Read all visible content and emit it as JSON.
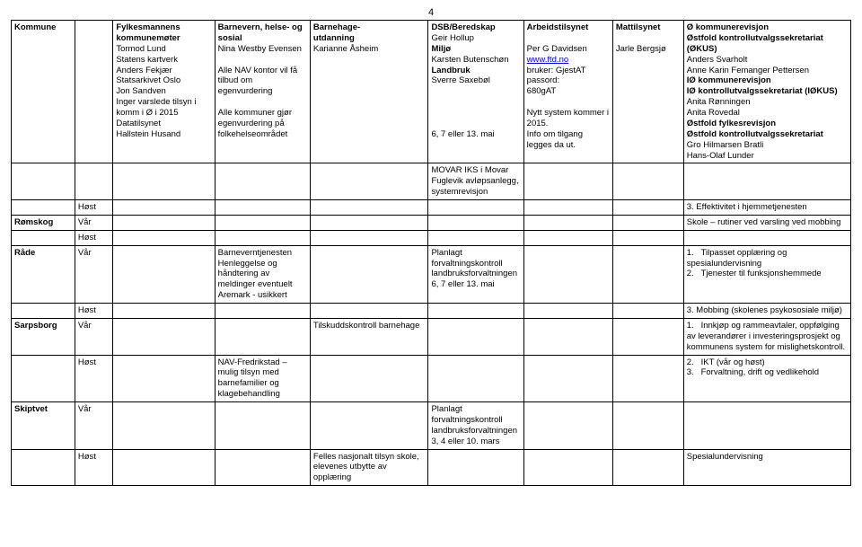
{
  "page_number": "4",
  "headers": {
    "c0": "Kommune",
    "c2_title": "Fylkesmannens kommunemøter",
    "c2_lines": "Tormod Lund\nStatens kartverk\nAnders Fekjær\nStatsarkivet Oslo\nJon Sandven\nInger varslede tilsyn i komm i Ø i 2015\nDatatilsynet\nHallstein Husand",
    "c3_title": "Barnevern, helse- og sosial",
    "c3_lines": "Nina Westby Evensen\n\nAlle NAV kontor vil få tilbud om egenvurdering\n\nAlle kommuner gjør egenvurdering på folkehelseområdet",
    "c4_title": "Barnehage-\nutdanning",
    "c4_lines": "Karianne Åsheim",
    "c5_title": "DSB/Beredskap",
    "c5_lines_html": "Geir Hollup<br><b>Miljø</b><br>Karsten Butenschøn<br><b>Landbruk</b><br>Sverre Saxebøl<br><br><br><br><br>6, 7 eller 13. mai",
    "c6_title": "Arbeidstilsynet",
    "c6_lines_html": "Per G Davidsen<br><a class=\"link\" href=\"#\">www.ftd.no</a><br>bruker: GjestAT<br>passord:<br>680gAT<br><br>Nytt system kommer i 2015.<br>Info om tilgang legges da ut.",
    "c7_title": "Mattilsynet",
    "c7_lines": "Jarle Bergsjø",
    "c8_title": "Ø kommunerevisjon",
    "c8_lines_html": "<b>Østfold kontrollutvalgssekretariat (ØKUS)</b><br>Anders Svarholt<br>Anne Karin Femanger Pettersen<br><b>IØ kommunerevisjon</b><br><b>IØ kontrollutvalgssekretariat (IØKUS)</b><br>Anita Rønningen<br>Anita Rovedal<br><b>Østfold fylkesrevisjon</b><br><b>Østfold kontrollutvalgssekretariat</b><br>Gro Hilmarsen Bratli<br>Hans-Olaf Lunder"
  },
  "rows": {
    "movar": "MOVAR IKS i Movar Fuglevik avløpsanlegg, systemrevisjon",
    "host_eff": "3.   Effektivitet i hjemmetjenesten",
    "romskog": "Rømskog",
    "romskog_var": "Skole – rutiner ved varsling ved mobbing",
    "rade": "Råde",
    "rade_c3": "Barneverntjenesten Henleggelse og håndtering av meldinger eventuelt Aremark - usikkert",
    "rade_c5": "Planlagt forvaltningskontroll landbruksforvaltningen 6, 7 eller 13. mai",
    "rade_c8_html": "1.&nbsp;&nbsp;&nbsp;Tilpasset opplæring og spesialundervisning<br>2.&nbsp;&nbsp;&nbsp;Tjenester til funksjonshemmede",
    "rade_host_c8": "3.   Mobbing (skolenes psykososiale miljø)",
    "sarpsborg": "Sarpsborg",
    "sarpsborg_c4": "Tilskuddskontroll barnehage",
    "sarpsborg_c8_html": "1.&nbsp;&nbsp;&nbsp;Innkjøp og rammeavtaler, oppfølging av leverandører i investeringsprosjekt og kommunens system for mislighetskontroll.",
    "sarpsborg_host_c3": "NAV-Fredrikstad – mulig tilsyn med barnefamilier og klagebehandling",
    "sarpsborg_host_c8_html": "2.&nbsp;&nbsp;&nbsp;IKT (vår og høst)<br>3.&nbsp;&nbsp;&nbsp;Forvaltning, drift og vedlikehold",
    "skiptvet": "Skiptvet",
    "skiptvet_c5": "Planlagt forvaltningskontroll landbruksforvaltningen 3, 4 eller 10. mars",
    "skiptvet_host_c4": "Felles nasjonalt tilsyn skole, elevenes utbytte av opplæring",
    "skiptvet_host_c8": "Spesialundervisning",
    "host": "Høst",
    "var": "Vår"
  }
}
